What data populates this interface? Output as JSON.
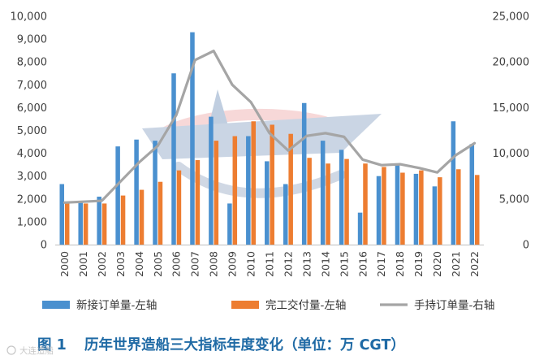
{
  "chart_data": {
    "type": "bar",
    "categories": [
      "2000",
      "2001",
      "2002",
      "2003",
      "2004",
      "2005",
      "2006",
      "2007",
      "2008",
      "2009",
      "2010",
      "2011",
      "2012",
      "2013",
      "2014",
      "2015",
      "2016",
      "2017",
      "2018",
      "2019",
      "2020",
      "2021",
      "2022"
    ],
    "series": [
      {
        "name": "新接订单量-左轴",
        "type": "bar",
        "axis": "left",
        "color": "#4a90cf",
        "values": [
          2650,
          1850,
          2100,
          4300,
          4600,
          4550,
          7500,
          9300,
          5600,
          1800,
          4750,
          3650,
          2650,
          6200,
          4550,
          4150,
          1400,
          3000,
          3550,
          3100,
          2550,
          5400,
          4400
        ]
      },
      {
        "name": "完工交付量-左轴",
        "type": "bar",
        "axis": "left",
        "color": "#ed7d31",
        "values": [
          1850,
          1800,
          1800,
          2150,
          2400,
          2750,
          3250,
          3700,
          4550,
          4750,
          5400,
          5250,
          4850,
          3800,
          3550,
          3750,
          3550,
          3400,
          3150,
          3250,
          2950,
          3300,
          3050
        ]
      },
      {
        "name": "手持订单量-右轴",
        "type": "line",
        "axis": "right",
        "color": "#a5a5a5",
        "values": [
          4600,
          4700,
          4800,
          6900,
          9000,
          10800,
          14200,
          20200,
          21200,
          17500,
          15600,
          12200,
          10300,
          11900,
          12200,
          11800,
          9300,
          8700,
          8800,
          8400,
          7900,
          9800,
          11100
        ]
      }
    ],
    "y_left": {
      "min": 0,
      "max": 10000,
      "ticks": [
        "0",
        "1,000",
        "2,000",
        "3,000",
        "4,000",
        "5,000",
        "6,000",
        "7,000",
        "8,000",
        "9,000",
        "10,000"
      ]
    },
    "y_right": {
      "min": 0,
      "max": 25000,
      "ticks": [
        "0",
        "5,000",
        "10,000",
        "15,000",
        "20,000",
        "25,000"
      ]
    },
    "grid": false,
    "legend_position": "bottom"
  },
  "caption": {
    "label": "图 1",
    "text": "历年世界造船三大指标年度变化（单位：万 CGT）"
  },
  "watermark": {
    "text": "大连造船"
  }
}
